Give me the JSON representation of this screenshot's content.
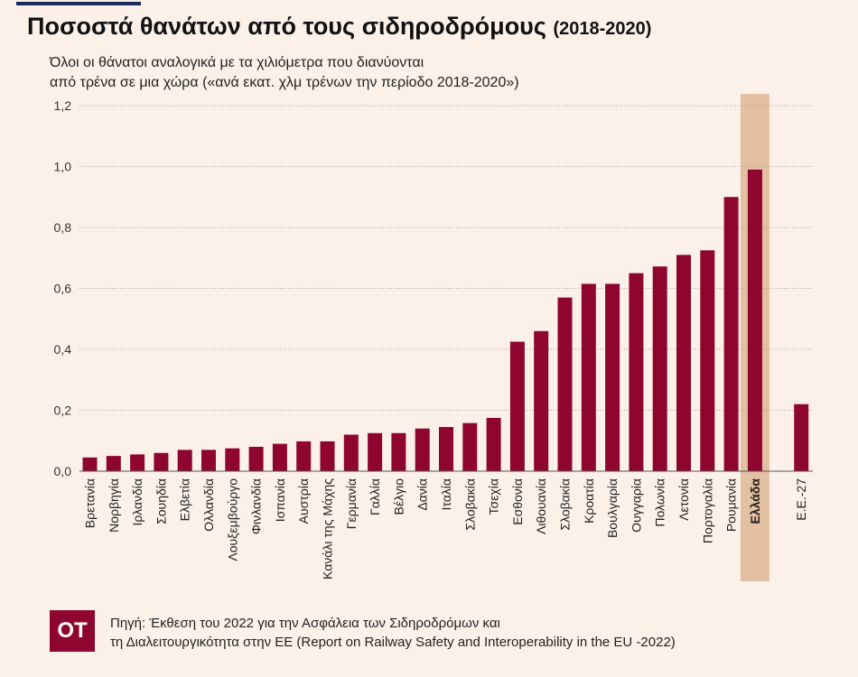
{
  "header": {
    "title": "Ποσοστά θανάτων από τους σιδηροδρόμους",
    "title_years": "(2018-2020)",
    "subtitle_line1": "Όλοι οι θάνατοι αναλογικά με τα χιλιόμετρα που διανύονται",
    "subtitle_line2": "από τρένα σε μια χώρα («ανά εκατ. χλμ τρένων την περίοδο 2018-2020»)"
  },
  "footer": {
    "logo_text": "OT",
    "source_line1": "Πηγή: Έκθεση του 2022 για την Ασφάλεια των Σιδηροδρόμων και",
    "source_line2": "τη Διαλειτουργικότητα στην ΕΕ (Report on Railway Safety and Interoperability in the EU -2022)"
  },
  "chart_data": {
    "type": "bar",
    "categories": [
      "Βρετανία",
      "Νορβηγία",
      "Ιρλανδία",
      "Σουηδία",
      "Ελβετία",
      "Ολλανδία",
      "Λουξεμβούργο",
      "Φινλανδία",
      "Ισπανία",
      "Αυστρία",
      "Κανάλι της Μάχης",
      "Γερμανία",
      "Γαλλία",
      "Βέλγιο",
      "Δανία",
      "Ιταλία",
      "Σλοβακία",
      "Τσεχία",
      "Εσθονία",
      "Λιθουανία",
      "Σλοβακία",
      "Κροατία",
      "Βουλγαρία",
      "Ουγγαρία",
      "Πολωνία",
      "Λετονία",
      "Πορτογαλία",
      "Ρουμανία",
      "Ελλάδα",
      "Ε.Ε.-27"
    ],
    "values": [
      0.045,
      0.05,
      0.055,
      0.06,
      0.07,
      0.07,
      0.075,
      0.08,
      0.09,
      0.098,
      0.098,
      0.12,
      0.125,
      0.125,
      0.14,
      0.145,
      0.158,
      0.175,
      0.425,
      0.46,
      0.57,
      0.615,
      0.615,
      0.65,
      0.672,
      0.71,
      0.725,
      0.9,
      0.99,
      0.22
    ],
    "highlight": "Ελλάδα",
    "y_ticks": [
      "0,0",
      "0,2",
      "0,4",
      "0,6",
      "0,8",
      "1,0",
      "1,2"
    ],
    "ylim": [
      0,
      1.2
    ],
    "grid": true,
    "colors": {
      "bar": "#8e0630",
      "highlight_band": "#e4c0a2",
      "background": "#fbf1e9"
    }
  }
}
